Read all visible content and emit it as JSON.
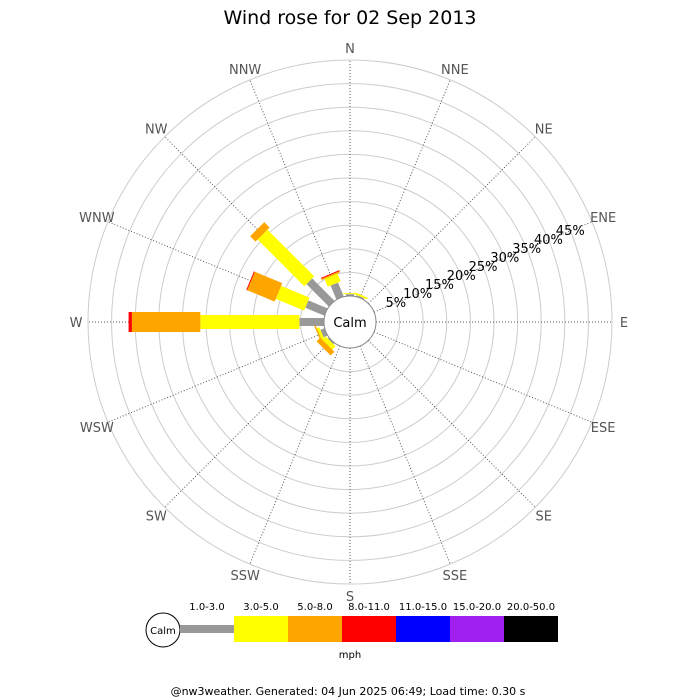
{
  "chart_data": {
    "type": "wind-rose",
    "title": "Wind rose for 02 Sep 2013",
    "calm_label": "Calm",
    "directions": [
      "N",
      "NNE",
      "NE",
      "ENE",
      "E",
      "ESE",
      "SE",
      "SSE",
      "S",
      "SSW",
      "SW",
      "WSW",
      "W",
      "WNW",
      "NW",
      "NNW"
    ],
    "ring_labels": [
      "5%",
      "10%",
      "15%",
      "20%",
      "25%",
      "30%",
      "35%",
      "40%",
      "45%"
    ],
    "r_max_percent": 50,
    "speed_unit": "mph",
    "speed_bins": [
      {
        "label": "1.0-3.0",
        "color": "#999999"
      },
      {
        "label": "3.0-5.0",
        "color": "#ffff00"
      },
      {
        "label": "5.0-8.0",
        "color": "#ffa500"
      },
      {
        "label": "8.0-11.0",
        "color": "#ff0000"
      },
      {
        "label": "11.0-15.0",
        "color": "#0000ff"
      },
      {
        "label": "15.0-20.0",
        "color": "#a020f0"
      },
      {
        "label": "20.0-50.0",
        "color": "#000000"
      }
    ],
    "series": [
      {
        "direction": "N",
        "values": [
          0.4,
          0.2,
          0,
          0,
          0,
          0,
          0
        ]
      },
      {
        "direction": "NNE",
        "values": [
          0.3,
          0.4,
          0,
          0,
          0,
          0,
          0
        ]
      },
      {
        "direction": "NNW",
        "values": [
          3.2,
          1.8,
          0.3,
          0.2,
          0,
          0,
          0
        ]
      },
      {
        "direction": "NW",
        "values": [
          6.7,
          14.0,
          1.6,
          0,
          0,
          0,
          0
        ]
      },
      {
        "direction": "WNW",
        "values": [
          4.4,
          6.5,
          6.3,
          0.2,
          0,
          0,
          0
        ]
      },
      {
        "direction": "W",
        "values": [
          5.2,
          21.0,
          14.5,
          0.7,
          0,
          0,
          0
        ]
      },
      {
        "direction": "WSW",
        "values": [
          0.9,
          0.6,
          0.3,
          0,
          0,
          0,
          0
        ]
      },
      {
        "direction": "SW",
        "values": [
          0.3,
          1.0,
          1.1,
          0,
          0,
          0,
          0
        ]
      }
    ]
  },
  "footer": "@nw3weather. Generated: 04 Jun 2025 06:49; Load time: 0.30 s"
}
